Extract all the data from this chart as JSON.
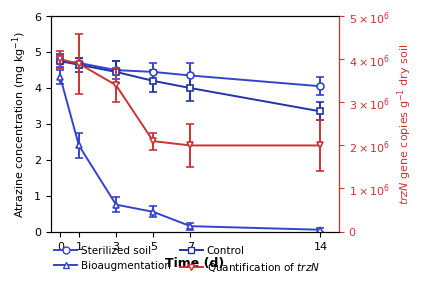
{
  "time": [
    0,
    1,
    3,
    5,
    7,
    14
  ],
  "sterilized_soil_y": [
    4.75,
    4.7,
    4.5,
    4.45,
    4.35,
    4.05
  ],
  "sterilized_soil_err": [
    0.15,
    0.15,
    0.25,
    0.25,
    0.35,
    0.25
  ],
  "control_y": [
    4.75,
    4.65,
    4.45,
    4.2,
    4.0,
    3.35
  ],
  "control_err": [
    0.2,
    0.2,
    0.3,
    0.3,
    0.35,
    0.25
  ],
  "bioaug_y": [
    4.3,
    2.4,
    0.75,
    0.55,
    0.15,
    0.05
  ],
  "bioaug_err": [
    0.2,
    0.35,
    0.2,
    0.15,
    0.1,
    0.05
  ],
  "trzN_y": [
    4000000,
    3900000,
    3400000,
    2100000,
    2000000,
    2000000
  ],
  "trzN_err": [
    200000,
    700000,
    400000,
    200000,
    500000,
    600000
  ],
  "blue_color": "#3344cc",
  "dark_blue_color": "#2233aa",
  "red_color": "#cc3333",
  "left_ylim": [
    0,
    6
  ],
  "right_ylim": [
    0,
    5000000
  ],
  "left_yticks": [
    0,
    1,
    2,
    3,
    4,
    5,
    6
  ],
  "right_yticks": [
    0,
    1000000,
    2000000,
    3000000,
    4000000,
    5000000
  ],
  "right_yticklabels": [
    "0",
    "1×10⁶",
    "2×10⁶",
    "3×10⁶",
    "4×10⁶",
    "5×10⁶"
  ],
  "xlabel": "Time (d)",
  "left_ylabel": "Atrazine concentration (mg kg⁻¹)",
  "right_ylabel": "trzN gene copies g⁻¹ dry soil"
}
